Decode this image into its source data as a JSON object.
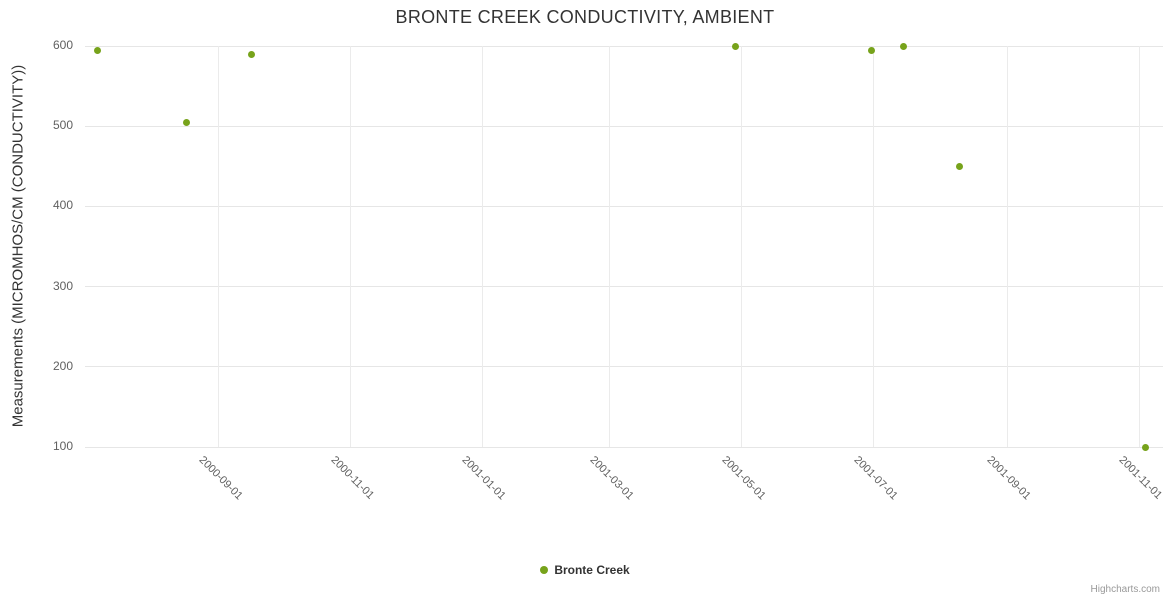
{
  "chart": {
    "credits": "Highcharts.com"
  },
  "chart_data": {
    "type": "scatter",
    "title": "BRONTE CREEK CONDUCTIVITY, AMBIENT",
    "xlabel": "",
    "ylabel": "Measurements (MICROMHOS/CM (CONDUCTIVITY))",
    "ylim": [
      100,
      600
    ],
    "yticks": [
      100,
      200,
      300,
      400,
      500,
      600
    ],
    "xticks": [
      "2000-09-01",
      "2000-11-01",
      "2001-01-01",
      "2001-03-01",
      "2001-05-01",
      "2001-07-01",
      "2001-09-01",
      "2001-11-01"
    ],
    "xlim": [
      "2000-07-01",
      "2001-11-12"
    ],
    "grid": true,
    "legend_position": "bottom",
    "series": [
      {
        "name": "Bronte Creek",
        "color": "#77a31b",
        "points": [
          {
            "x": "2000-07-07",
            "y": 595
          },
          {
            "x": "2000-08-17",
            "y": 505
          },
          {
            "x": "2000-09-16",
            "y": 590
          },
          {
            "x": "2001-04-28",
            "y": 600
          },
          {
            "x": "2001-06-30",
            "y": 595
          },
          {
            "x": "2001-07-15",
            "y": 600
          },
          {
            "x": "2001-08-10",
            "y": 450
          },
          {
            "x": "2001-11-04",
            "y": 100
          }
        ]
      }
    ]
  }
}
